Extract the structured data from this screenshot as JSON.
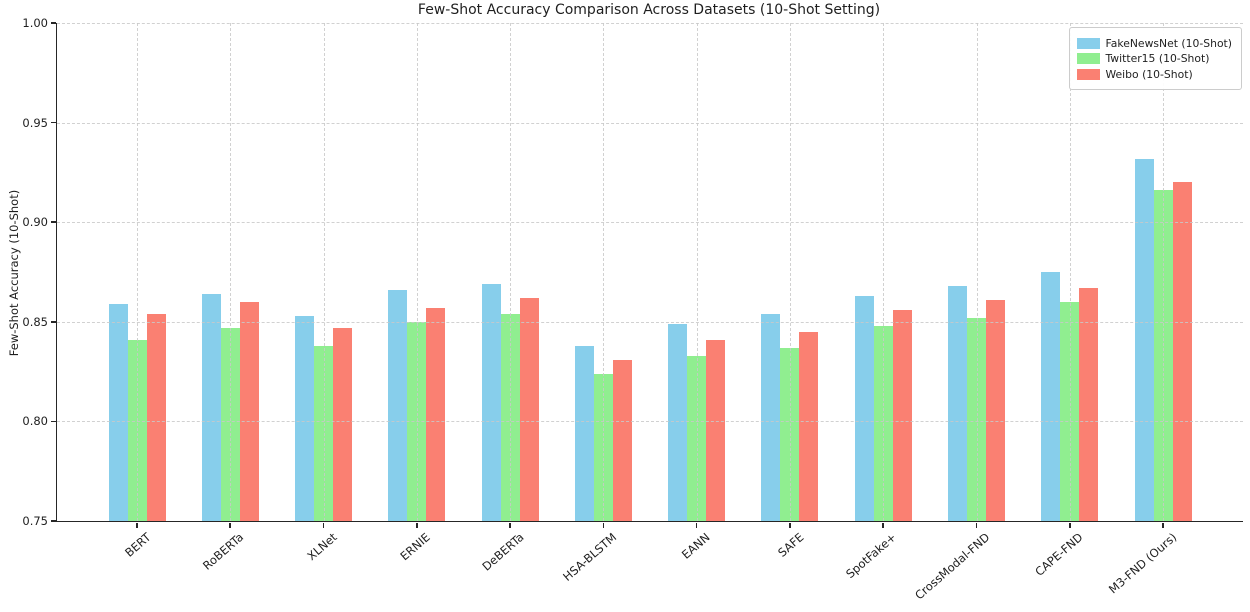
{
  "figure": {
    "background": "#ffffff",
    "text_color": "#1f1f1f",
    "spine_color": "#262626",
    "grid_color": "#c9c9c9"
  },
  "chart_data": {
    "type": "bar",
    "title": "Few-Shot Accuracy Comparison Across Datasets (10-Shot Setting)",
    "xlabel": "",
    "ylabel": "Few-Shot Accuracy (10-Shot)",
    "categories": [
      "BERT",
      "RoBERTa",
      "XLNet",
      "ERNIE",
      "DeBERTa",
      "HSA-BLSTM",
      "EANN",
      "SAFE",
      "SpotFake+",
      "CrossModal-FND",
      "CAPE-FND",
      "M3-FND (Ours)"
    ],
    "series": [
      {
        "name": "FakeNewsNet (10-Shot)",
        "color": "#87CEEB",
        "values": [
          0.859,
          0.864,
          0.853,
          0.866,
          0.869,
          0.838,
          0.849,
          0.854,
          0.863,
          0.868,
          0.875,
          0.932
        ]
      },
      {
        "name": "Twitter15 (10-Shot)",
        "color": "#90EE90",
        "values": [
          0.841,
          0.847,
          0.838,
          0.85,
          0.854,
          0.824,
          0.833,
          0.837,
          0.848,
          0.852,
          0.86,
          0.916
        ]
      },
      {
        "name": "Weibo (10-Shot)",
        "color": "#FA8072",
        "values": [
          0.854,
          0.86,
          0.847,
          0.857,
          0.862,
          0.831,
          0.841,
          0.845,
          0.856,
          0.861,
          0.867,
          0.92
        ]
      }
    ],
    "ylim": [
      0.75,
      1.0
    ],
    "yticks": [
      0.75,
      0.8,
      0.85,
      0.9,
      0.95,
      1.0
    ],
    "grid": true,
    "grid_above_bars": true,
    "legend_position": "upper right"
  }
}
